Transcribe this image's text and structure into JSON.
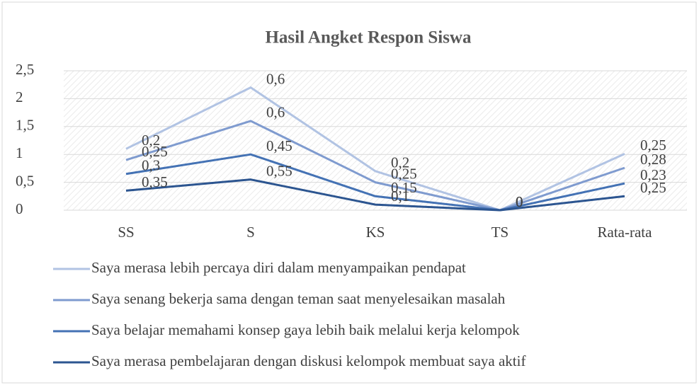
{
  "chart_data": {
    "type": "line",
    "stacked": true,
    "title": "Hasil Angket Respon Siswa",
    "categories": [
      "SS",
      "S",
      "KS",
      "TS",
      "Rata-rata"
    ],
    "series": [
      {
        "name": "Saya merasa lebih percaya diri dalam menyampaikan pendapat",
        "color": "#b1c3e3",
        "values": [
          0.2,
          0.6,
          0.2,
          0,
          0.25
        ],
        "value_labels": [
          "0,2",
          "0,6",
          "0,2",
          "0",
          "0,25"
        ]
      },
      {
        "name": "Saya senang bekerja sama dengan teman saat menyelesaikan masalah",
        "color": "#7f9bcf",
        "values": [
          0.25,
          0.6,
          0.25,
          0,
          0.28
        ],
        "value_labels": [
          "0,25",
          "0,6",
          "0,25",
          "0",
          "0,28"
        ]
      },
      {
        "name": "Saya belajar memahami konsep gaya lebih baik melalui kerja kelompok",
        "color": "#4472b4",
        "values": [
          0.3,
          0.45,
          0.15,
          0,
          0.23
        ],
        "value_labels": [
          "0,3",
          "0,45",
          "0,15",
          "0",
          "0,23"
        ]
      },
      {
        "name": "Saya merasa pembelajaran dengan diskusi kelompok membuat saya aktif",
        "color": "#2c5590",
        "values": [
          0.35,
          0.55,
          0.1,
          0,
          0.25
        ],
        "value_labels": [
          "0,35",
          "0,55",
          "0,1",
          "0",
          "0,25"
        ]
      }
    ],
    "ylim": [
      0,
      2.5
    ],
    "yticks": [
      0,
      {
        "value": 0.5,
        "label": "0,5"
      },
      1,
      {
        "value": 1.5,
        "label": "1,5"
      },
      2,
      {
        "value": 2.5,
        "label": "2,5"
      }
    ],
    "grid": true,
    "legend": "bottom"
  }
}
